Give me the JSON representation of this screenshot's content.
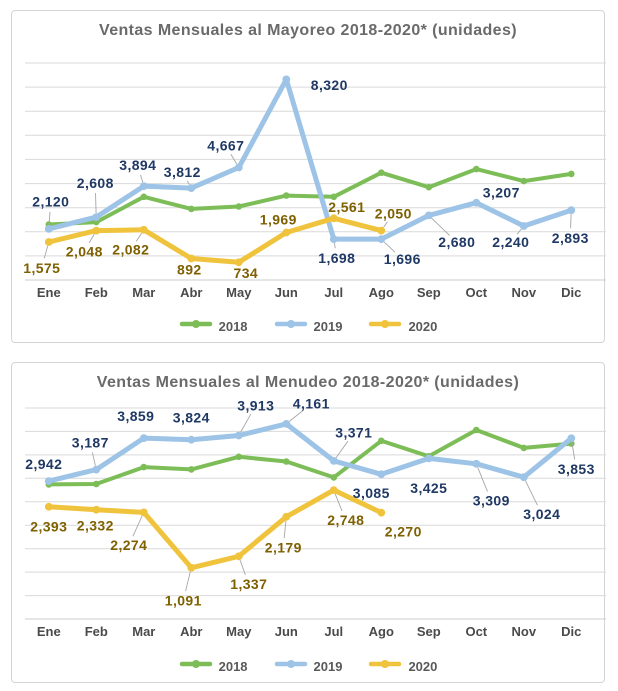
{
  "colors": {
    "series_2018": "#7DBD57",
    "series_2019": "#9DC3E6",
    "series_2020": "#F0C33C",
    "label_navy": "#1F3864",
    "label_gold": "#7F6000",
    "title_gray": "#6A6A6A",
    "axis_text": "#4A4A4A",
    "gridline": "#D9D9D9",
    "leader_line": "#A6A6A6",
    "legend_text": "#595959",
    "card_border": "#D4D4D4"
  },
  "chart_data": [
    {
      "type": "line",
      "title": "Ventas Mensuales al Mayoreo 2018-2020* (unidades)",
      "categories": [
        "Ene",
        "Feb",
        "Mar",
        "Abr",
        "May",
        "Jun",
        "Jul",
        "Ago",
        "Sep",
        "Oct",
        "Nov",
        "Dic"
      ],
      "ylim": [
        0,
        9000
      ],
      "gridline_step": 1000,
      "grid": true,
      "legend_position": "bottom",
      "legend_entries": [
        "2018",
        "2019",
        "2020"
      ],
      "series": [
        {
          "name": "2018",
          "color": "#7DBD57",
          "data_labels": false,
          "values_estimated": true,
          "values": [
            2300,
            2400,
            3450,
            2950,
            3050,
            3500,
            3450,
            4450,
            3850,
            4600,
            4100,
            4400
          ]
        },
        {
          "name": "2019",
          "color": "#9DC3E6",
          "label_color": "#1F3864",
          "data_labels": true,
          "values": [
            2120,
            2608,
            3894,
            3812,
            4667,
            8320,
            1698,
            1696,
            2680,
            3207,
            2240,
            2893
          ],
          "labels": [
            "2,120",
            "2,608",
            "3,894",
            "3,812",
            "4,667",
            "8,320",
            "1,698",
            "1,696",
            "2,680",
            "3,207",
            "2,240",
            "2,893"
          ]
        },
        {
          "name": "2020",
          "color": "#F0C33C",
          "label_color": "#7F6000",
          "data_labels": true,
          "values": [
            1575,
            2048,
            2082,
            892,
            734,
            1969,
            2561,
            2050
          ],
          "labels": [
            "1,575",
            "2,048",
            "2,082",
            "892",
            "734",
            "1,969",
            "2,561",
            "2,050"
          ]
        }
      ]
    },
    {
      "type": "line",
      "title": "Ventas Mensuales al Menudeo 2018-2020* (unidades)",
      "categories": [
        "Ene",
        "Feb",
        "Mar",
        "Abr",
        "May",
        "Jun",
        "Jul",
        "Ago",
        "Sep",
        "Oct",
        "Nov",
        "Dic"
      ],
      "ylim": [
        0,
        4500
      ],
      "gridline_step": 500,
      "grid": true,
      "legend_position": "bottom",
      "legend_entries": [
        "2018",
        "2019",
        "2020"
      ],
      "series": [
        {
          "name": "2018",
          "color": "#7DBD57",
          "data_labels": false,
          "values_estimated": true,
          "values": [
            2870,
            2880,
            3240,
            3190,
            3460,
            3360,
            3020,
            3800,
            3470,
            4030,
            3650,
            3740
          ]
        },
        {
          "name": "2019",
          "color": "#9DC3E6",
          "label_color": "#1F3864",
          "data_labels": true,
          "values": [
            2942,
            3187,
            3859,
            3824,
            3913,
            4161,
            3371,
            3085,
            3425,
            3309,
            3024,
            3853
          ],
          "labels": [
            "2,942",
            "3,187",
            "3,859",
            "3,824",
            "3,913",
            "4,161",
            "3,371",
            "3,085",
            "3,425",
            "3,309",
            "3,024",
            "3,853"
          ]
        },
        {
          "name": "2020",
          "color": "#F0C33C",
          "label_color": "#7F6000",
          "data_labels": true,
          "values": [
            2393,
            2332,
            2274,
            1091,
            1337,
            2179,
            2748,
            2270
          ],
          "labels": [
            "2,393",
            "2,332",
            "2,274",
            "1,091",
            "1,337",
            "2,179",
            "2,748",
            "2,270"
          ]
        }
      ]
    }
  ]
}
